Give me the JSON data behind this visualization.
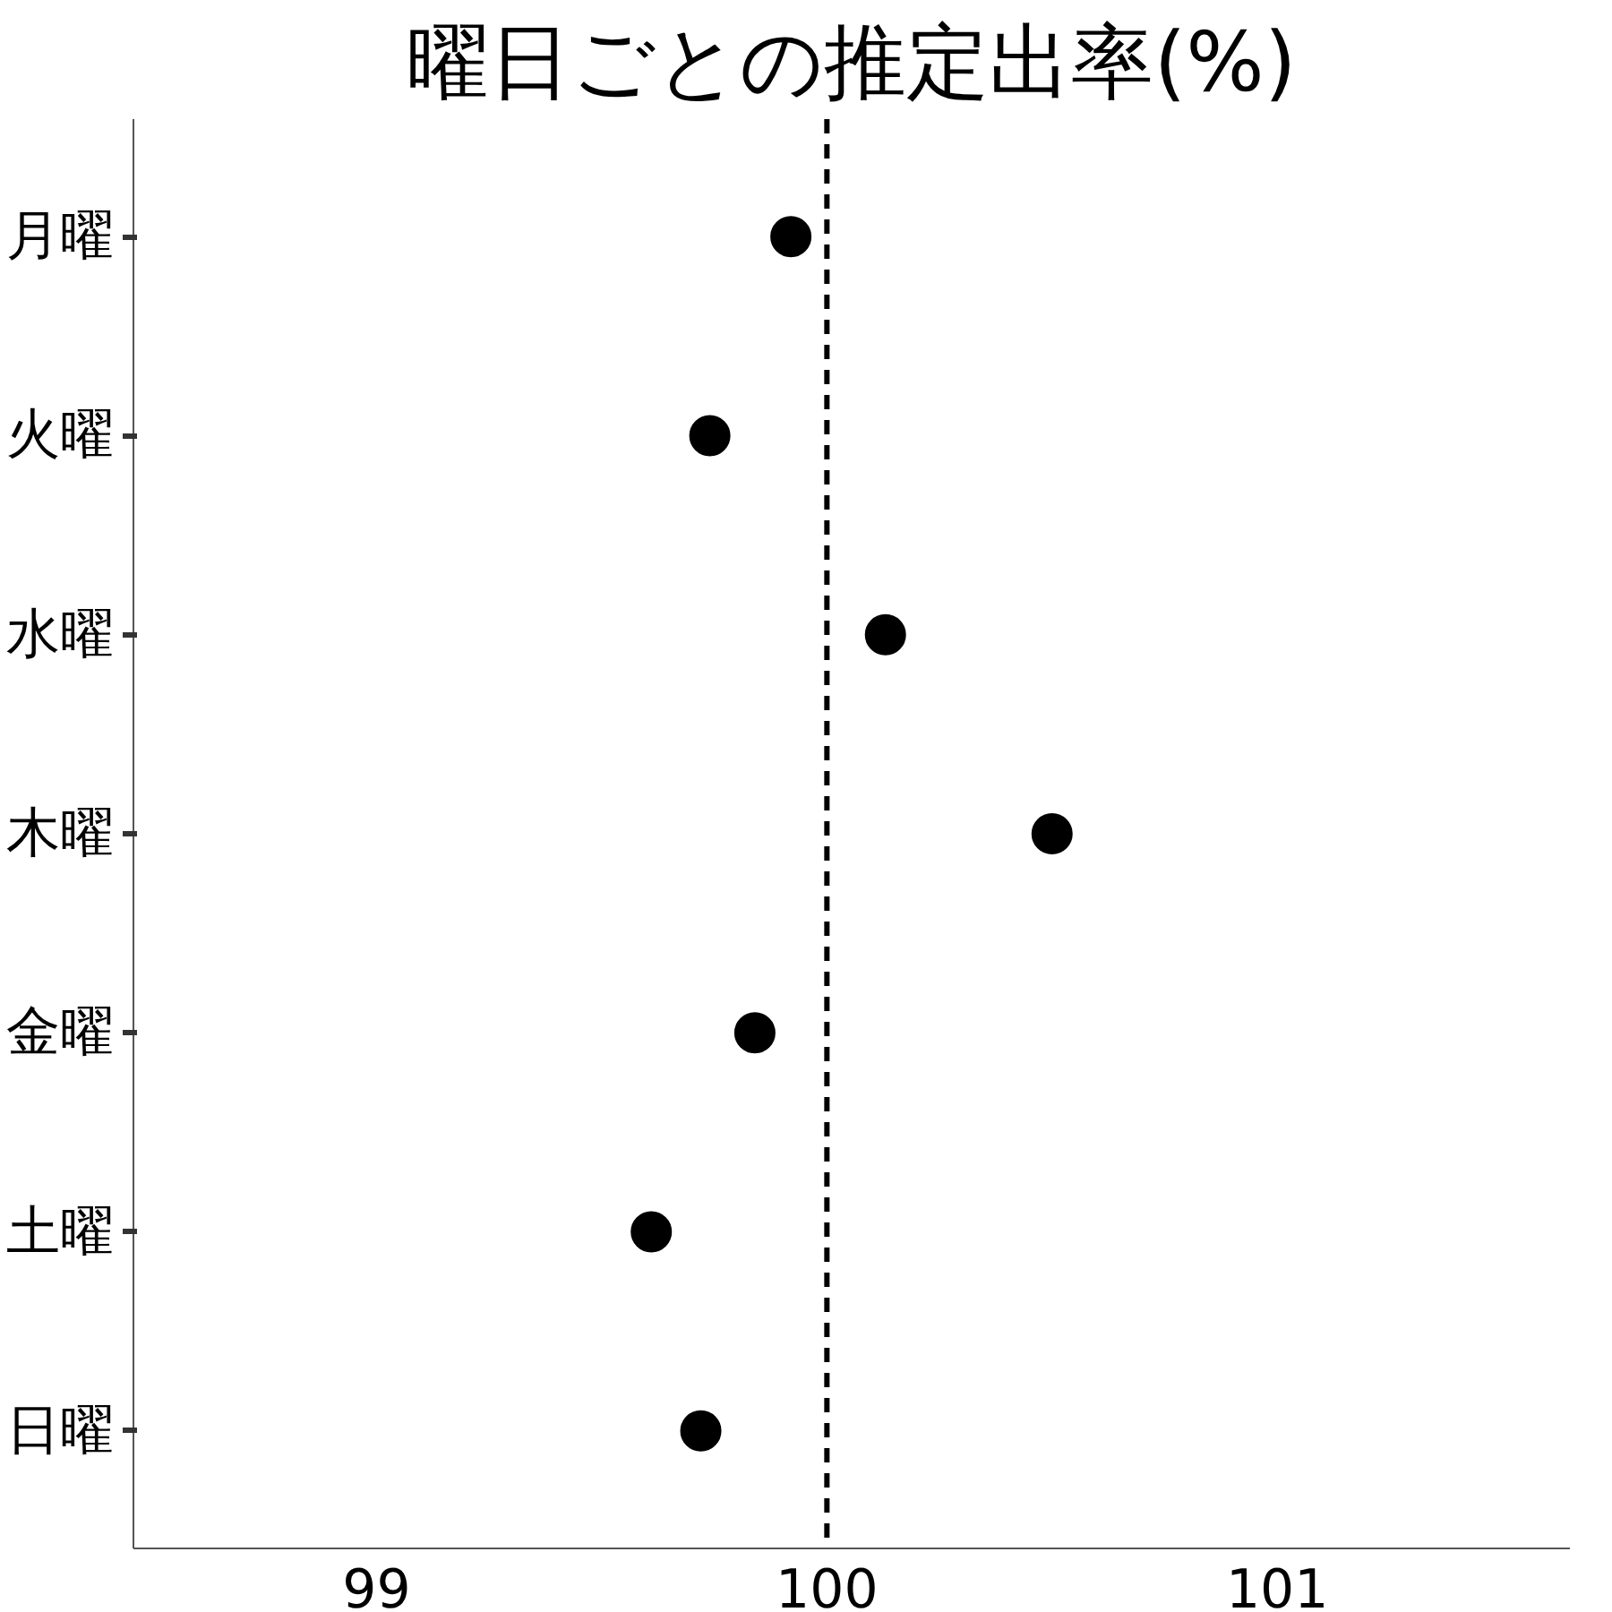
{
  "chart_data": {
    "type": "scatter",
    "title": "曜日ごとの推定出率(%)",
    "orientation": "horizontal",
    "categories": [
      "月曜",
      "火曜",
      "水曜",
      "木曜",
      "金曜",
      "土曜",
      "日曜"
    ],
    "series": [
      {
        "color": "#000000",
        "values": [
          99.92,
          99.74,
          100.13,
          100.5,
          99.84,
          99.61,
          99.72
        ]
      }
    ],
    "xlim": [
      98.46,
      101.65
    ],
    "xticks": [
      99,
      100,
      101
    ],
    "ref_lines": [
      {
        "axis": "x",
        "value": 100,
        "line_style": "dashed",
        "color": "#000000"
      }
    ],
    "grid": false,
    "marker": "circle"
  }
}
